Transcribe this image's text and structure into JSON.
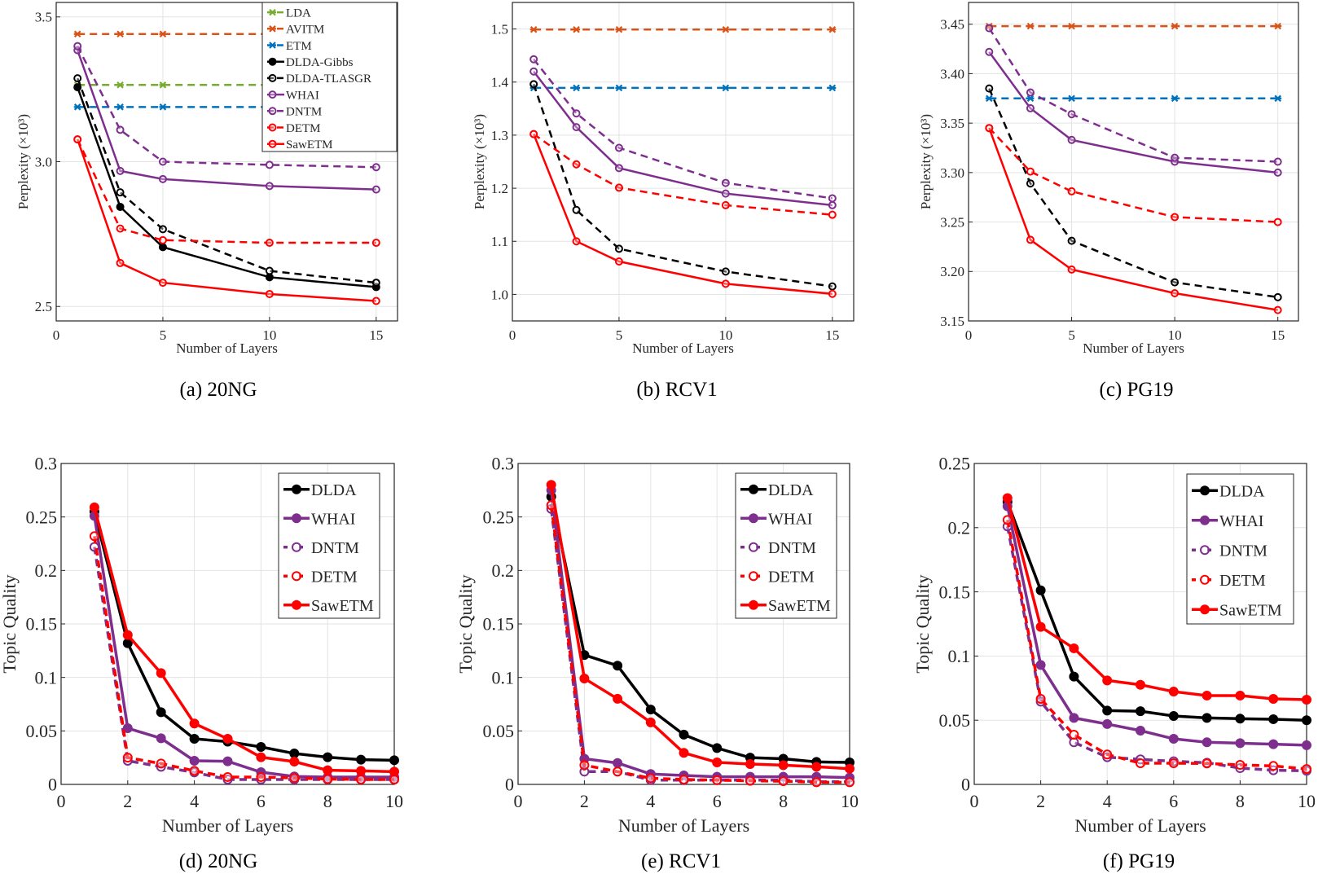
{
  "colors": {
    "LDA": "#77ac30",
    "AVITM": "#d95319",
    "ETM": "#0072bd",
    "black": "#000000",
    "purple": "#7e2f8e",
    "red": "#ff0000"
  },
  "chart_data": [
    {
      "type": "line",
      "caption": "(a)  20NG",
      "xlabel": "Number of Layers",
      "ylabel": "Perplexity (×10³)",
      "xlim": [
        0,
        16
      ],
      "ylim": [
        2.45,
        3.55
      ],
      "xticks": [
        "0",
        "5",
        "10",
        "15"
      ],
      "yticks": [
        "2.5",
        "3.0",
        "3.5"
      ],
      "grid": true,
      "legend": "top-right",
      "series": [
        {
          "name": "LDA",
          "color": "#77ac30",
          "dash": true,
          "marker": "x",
          "x": [
            1,
            3,
            5,
            10,
            15
          ],
          "values": [
            3.265,
            3.265,
            3.265,
            3.265,
            3.265
          ]
        },
        {
          "name": "AVITM",
          "color": "#d95319",
          "dash": true,
          "marker": "x",
          "x": [
            1,
            3,
            5,
            10,
            15
          ],
          "values": [
            3.441,
            3.441,
            3.441,
            3.441,
            3.441
          ]
        },
        {
          "name": "ETM",
          "color": "#0072bd",
          "dash": true,
          "marker": "x",
          "x": [
            1,
            3,
            5,
            10,
            15
          ],
          "values": [
            3.189,
            3.189,
            3.189,
            3.189,
            3.189
          ]
        },
        {
          "name": "DLDA-Gibbs",
          "color": "#000000",
          "dash": false,
          "marker": "dot",
          "x": [
            1,
            3,
            5,
            10,
            15
          ],
          "values": [
            3.257,
            2.844,
            2.705,
            2.601,
            2.567
          ]
        },
        {
          "name": "DLDA-TLASGR",
          "color": "#000000",
          "dash": true,
          "marker": "circle",
          "x": [
            1,
            3,
            5,
            10,
            15
          ],
          "values": [
            3.288,
            2.894,
            2.767,
            2.623,
            2.582
          ]
        },
        {
          "name": "WHAI",
          "color": "#7e2f8e",
          "dash": false,
          "marker": "circle",
          "x": [
            1,
            3,
            5,
            10,
            15
          ],
          "values": [
            3.385,
            2.968,
            2.94,
            2.916,
            2.904
          ]
        },
        {
          "name": "DNTM",
          "color": "#7e2f8e",
          "dash": true,
          "marker": "circle",
          "x": [
            1,
            3,
            5,
            10,
            15
          ],
          "values": [
            3.399,
            3.11,
            3.0,
            2.989,
            2.981
          ]
        },
        {
          "name": "DETM",
          "color": "#ff0000",
          "dash": true,
          "marker": "circle",
          "x": [
            1,
            3,
            5,
            10,
            15
          ],
          "values": [
            3.077,
            2.769,
            2.729,
            2.72,
            2.72
          ]
        },
        {
          "name": "SawETM",
          "color": "#ff0000",
          "dash": false,
          "marker": "circle",
          "x": [
            1,
            3,
            5,
            10,
            15
          ],
          "values": [
            3.077,
            2.65,
            2.582,
            2.543,
            2.519
          ]
        }
      ]
    },
    {
      "type": "line",
      "caption": "(b)  RCV1",
      "xlabel": "Number of Layers",
      "ylabel": "Perplexity (×10³)",
      "xlim": [
        0,
        16
      ],
      "ylim": [
        0.95,
        1.55
      ],
      "xticks": [
        "0",
        "5",
        "10",
        "15"
      ],
      "yticks": [
        "1.0",
        "1.1",
        "1.2",
        "1.3",
        "1.4",
        "1.5"
      ],
      "grid": true,
      "series": [
        {
          "color": "#d95319",
          "dash": true,
          "marker": "x",
          "x": [
            1,
            3,
            5,
            10,
            15
          ],
          "values": [
            1.499,
            1.499,
            1.499,
            1.499,
            1.499
          ]
        },
        {
          "color": "#0072bd",
          "dash": true,
          "marker": "x",
          "x": [
            1,
            3,
            5,
            10,
            15
          ],
          "values": [
            1.389,
            1.389,
            1.389,
            1.389,
            1.389
          ]
        },
        {
          "color": "#000000",
          "dash": true,
          "marker": "circle",
          "x": [
            1,
            3,
            5,
            10,
            15
          ],
          "values": [
            1.396,
            1.159,
            1.086,
            1.043,
            1.015
          ]
        },
        {
          "color": "#7e2f8e",
          "dash": false,
          "marker": "circle",
          "x": [
            1,
            3,
            5,
            10,
            15
          ],
          "values": [
            1.42,
            1.315,
            1.238,
            1.19,
            1.168
          ]
        },
        {
          "color": "#7e2f8e",
          "dash": true,
          "marker": "circle",
          "x": [
            1,
            3,
            5,
            10,
            15
          ],
          "values": [
            1.443,
            1.341,
            1.276,
            1.21,
            1.181
          ]
        },
        {
          "color": "#ff0000",
          "dash": true,
          "marker": "circle",
          "x": [
            1,
            3,
            5,
            10,
            15
          ],
          "values": [
            1.302,
            1.245,
            1.201,
            1.168,
            1.15
          ]
        },
        {
          "color": "#ff0000",
          "dash": false,
          "marker": "circle",
          "x": [
            1,
            3,
            5,
            10,
            15
          ],
          "values": [
            1.302,
            1.1,
            1.062,
            1.02,
            1.001
          ]
        }
      ]
    },
    {
      "type": "line",
      "caption": "(c)  PG19",
      "xlabel": "Number of Layers",
      "ylabel": "Perplexity (×10³)",
      "xlim": [
        0,
        16
      ],
      "ylim": [
        3.15,
        3.472
      ],
      "xticks": [
        "0",
        "5",
        "10",
        "15"
      ],
      "yticks": [
        "3.15",
        "3.20",
        "3.25",
        "3.30",
        "3.35",
        "3.40",
        "3.45"
      ],
      "grid": true,
      "series": [
        {
          "color": "#d95319",
          "dash": true,
          "marker": "x",
          "x": [
            1,
            3,
            5,
            10,
            15
          ],
          "values": [
            3.448,
            3.448,
            3.448,
            3.448,
            3.448
          ]
        },
        {
          "color": "#0072bd",
          "dash": true,
          "marker": "x",
          "x": [
            1,
            3,
            5,
            10,
            15
          ],
          "values": [
            3.375,
            3.375,
            3.375,
            3.375,
            3.375
          ]
        },
        {
          "color": "#000000",
          "dash": true,
          "marker": "circle",
          "x": [
            1,
            3,
            5,
            10,
            15
          ],
          "values": [
            3.385,
            3.289,
            3.231,
            3.189,
            3.174
          ]
        },
        {
          "color": "#7e2f8e",
          "dash": false,
          "marker": "circle",
          "x": [
            1,
            3,
            5,
            10,
            15
          ],
          "values": [
            3.422,
            3.365,
            3.333,
            3.311,
            3.3
          ]
        },
        {
          "color": "#7e2f8e",
          "dash": true,
          "marker": "circle",
          "x": [
            1,
            3,
            5,
            10,
            15
          ],
          "values": [
            3.446,
            3.381,
            3.359,
            3.315,
            3.311
          ]
        },
        {
          "color": "#ff0000",
          "dash": true,
          "marker": "circle",
          "x": [
            1,
            3,
            5,
            10,
            15
          ],
          "values": [
            3.345,
            3.301,
            3.281,
            3.255,
            3.25
          ]
        },
        {
          "color": "#ff0000",
          "dash": false,
          "marker": "circle",
          "x": [
            1,
            3,
            5,
            10,
            15
          ],
          "values": [
            3.345,
            3.232,
            3.202,
            3.178,
            3.161
          ]
        }
      ]
    },
    {
      "type": "line",
      "caption": "(d)  20NG",
      "xlabel": "Number of Layers",
      "ylabel": "Topic Quality",
      "xlim": [
        0,
        10
      ],
      "ylim": [
        0,
        0.3
      ],
      "xticks": [
        "0",
        "2",
        "4",
        "6",
        "8",
        "10"
      ],
      "yticks": [
        "0",
        "0.05",
        "0.1",
        "0.15",
        "0.2",
        "0.25",
        "0.3"
      ],
      "grid": true,
      "legend": "top-right",
      "series": [
        {
          "name": "DLDA",
          "color": "#000000",
          "dash": false,
          "marker": "dot",
          "x": [
            1,
            2,
            3,
            4,
            5,
            6,
            7,
            8,
            9,
            10
          ],
          "values": [
            0.255,
            0.132,
            0.0675,
            0.0426,
            0.04,
            0.035,
            0.0289,
            0.0254,
            0.0231,
            0.0226
          ]
        },
        {
          "name": "WHAI",
          "color": "#7e2f8e",
          "dash": false,
          "marker": "dot",
          "x": [
            1,
            2,
            3,
            4,
            5,
            6,
            7,
            8,
            9,
            10
          ],
          "values": [
            0.251,
            0.0525,
            0.0431,
            0.0221,
            0.0216,
            0.0114,
            0.0074,
            0.0069,
            0.0069,
            0.0069
          ]
        },
        {
          "name": "DNTM",
          "color": "#7e2f8e",
          "dash": true,
          "marker": "circle",
          "x": [
            1,
            2,
            3,
            4,
            5,
            6,
            7,
            8,
            9,
            10
          ],
          "values": [
            0.222,
            0.0221,
            0.0165,
            0.0112,
            0.0046,
            0.0046,
            0.0046,
            0.0046,
            0.0046,
            0.0046
          ]
        },
        {
          "name": "DETM",
          "color": "#ff0000",
          "dash": true,
          "marker": "circle",
          "x": [
            1,
            2,
            3,
            4,
            5,
            6,
            7,
            8,
            9,
            10
          ],
          "values": [
            0.232,
            0.025,
            0.0195,
            0.0127,
            0.0069,
            0.0069,
            0.006,
            0.005,
            0.0046,
            0.0046
          ]
        },
        {
          "name": "SawETM",
          "color": "#ff0000",
          "dash": false,
          "marker": "dot",
          "x": [
            1,
            2,
            3,
            4,
            5,
            6,
            7,
            8,
            9,
            10
          ],
          "values": [
            0.259,
            0.1396,
            0.104,
            0.0569,
            0.0426,
            0.0254,
            0.0213,
            0.0132,
            0.0127,
            0.0119
          ]
        }
      ]
    },
    {
      "type": "line",
      "caption": "(e)  RCV1",
      "xlabel": "Number of Layers",
      "ylabel": "Topic Quality",
      "xlim": [
        0,
        10
      ],
      "ylim": [
        0,
        0.3
      ],
      "xticks": [
        "0",
        "2",
        "4",
        "6",
        "8",
        "10"
      ],
      "yticks": [
        "0",
        "0.05",
        "0.1",
        "0.15",
        "0.2",
        "0.25",
        "0.3"
      ],
      "grid": true,
      "legend": "top-right",
      "series": [
        {
          "name": "DLDA",
          "color": "#000000",
          "dash": false,
          "marker": "dot",
          "x": [
            1,
            2,
            3,
            4,
            5,
            6,
            7,
            8,
            9,
            10
          ],
          "values": [
            0.269,
            0.121,
            0.111,
            0.07,
            0.0465,
            0.034,
            0.025,
            0.024,
            0.021,
            0.0206
          ]
        },
        {
          "name": "WHAI",
          "color": "#7e2f8e",
          "dash": false,
          "marker": "dot",
          "x": [
            1,
            2,
            3,
            4,
            5,
            6,
            7,
            8,
            9,
            10
          ],
          "values": [
            0.275,
            0.024,
            0.02,
            0.0097,
            0.0084,
            0.0071,
            0.0071,
            0.0071,
            0.0071,
            0.0064
          ]
        },
        {
          "name": "DNTM",
          "color": "#7e2f8e",
          "dash": true,
          "marker": "circle",
          "x": [
            1,
            2,
            3,
            4,
            5,
            6,
            7,
            8,
            9,
            10
          ],
          "values": [
            0.2575,
            0.012,
            0.012,
            0.004,
            0.004,
            0.004,
            0.004,
            0.004,
            0.0025,
            0.0025
          ]
        },
        {
          "name": "DETM",
          "color": "#ff0000",
          "dash": true,
          "marker": "circle",
          "x": [
            1,
            2,
            3,
            4,
            5,
            6,
            7,
            8,
            9,
            10
          ],
          "values": [
            0.261,
            0.018,
            0.012,
            0.0058,
            0.0046,
            0.004,
            0.0033,
            0.003,
            0.002,
            0.002
          ]
        },
        {
          "name": "SawETM",
          "color": "#ff0000",
          "dash": false,
          "marker": "dot",
          "x": [
            1,
            2,
            3,
            4,
            5,
            6,
            7,
            8,
            9,
            10
          ],
          "values": [
            0.28,
            0.099,
            0.08,
            0.058,
            0.0295,
            0.0206,
            0.019,
            0.018,
            0.0165,
            0.0147
          ]
        }
      ]
    },
    {
      "type": "line",
      "caption": "(f)  PG19",
      "xlabel": "Number of Layers",
      "ylabel": "Topic Quality",
      "xlim": [
        0,
        10
      ],
      "ylim": [
        0,
        0.25
      ],
      "xticks": [
        "0",
        "2",
        "4",
        "6",
        "8",
        "10"
      ],
      "yticks": [
        "0",
        "0.05",
        "0.1",
        "0.15",
        "0.2",
        "0.25"
      ],
      "grid": true,
      "legend": "top-right",
      "series": [
        {
          "name": "DLDA",
          "color": "#000000",
          "dash": false,
          "marker": "dot",
          "x": [
            1,
            2,
            3,
            4,
            5,
            6,
            7,
            8,
            9,
            10
          ],
          "values": [
            0.22,
            0.1512,
            0.084,
            0.0575,
            0.057,
            0.0533,
            0.0518,
            0.0512,
            0.0508,
            0.05
          ]
        },
        {
          "name": "WHAI",
          "color": "#7e2f8e",
          "dash": false,
          "marker": "dot",
          "x": [
            1,
            2,
            3,
            4,
            5,
            6,
            7,
            8,
            9,
            10
          ],
          "values": [
            0.2167,
            0.093,
            0.0518,
            0.047,
            0.0419,
            0.0355,
            0.0328,
            0.0321,
            0.0313,
            0.0305
          ]
        },
        {
          "name": "DNTM",
          "color": "#7e2f8e",
          "dash": true,
          "marker": "circle",
          "x": [
            1,
            2,
            3,
            4,
            5,
            6,
            7,
            8,
            9,
            10
          ],
          "values": [
            0.201,
            0.0645,
            0.0328,
            0.0212,
            0.0195,
            0.018,
            0.0169,
            0.0127,
            0.011,
            0.0106
          ]
        },
        {
          "name": "DETM",
          "color": "#ff0000",
          "dash": true,
          "marker": "circle",
          "x": [
            1,
            2,
            3,
            4,
            5,
            6,
            7,
            8,
            9,
            10
          ],
          "values": [
            0.206,
            0.0666,
            0.0387,
            0.0233,
            0.0165,
            0.0165,
            0.0163,
            0.0152,
            0.0144,
            0.012
          ]
        },
        {
          "name": "SawETM",
          "color": "#ff0000",
          "dash": false,
          "marker": "dot",
          "x": [
            1,
            2,
            3,
            4,
            5,
            6,
            7,
            8,
            9,
            10
          ],
          "values": [
            0.223,
            0.1227,
            0.106,
            0.081,
            0.0776,
            0.0723,
            0.0692,
            0.0692,
            0.0666,
            0.066
          ]
        }
      ]
    }
  ]
}
